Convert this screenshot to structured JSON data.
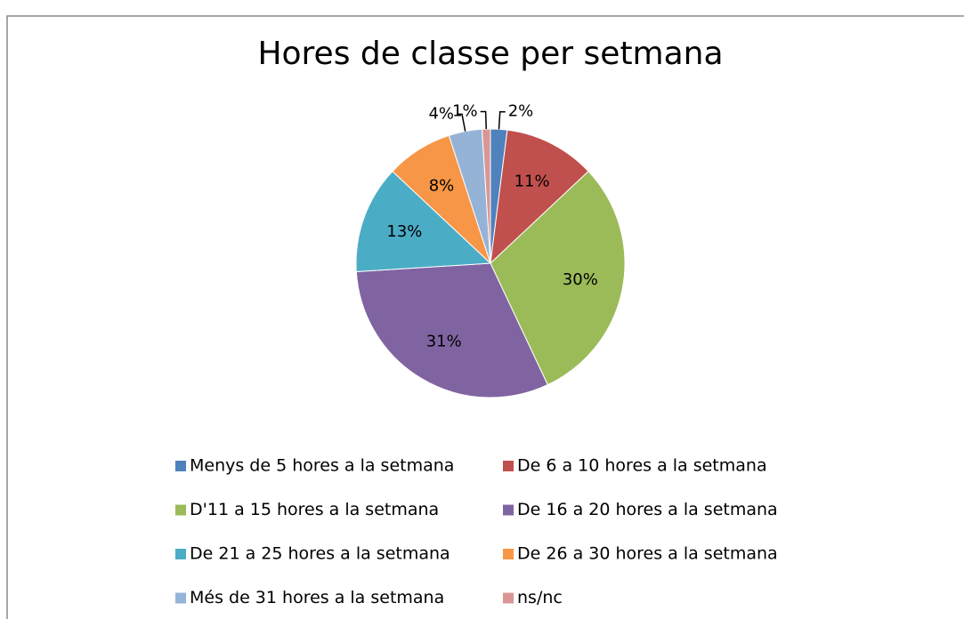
{
  "chart_data": {
    "type": "pie",
    "title": "Hores de classe per setmana",
    "categories": [
      "Menys de 5 hores a la setmana",
      "De 6 a 10 hores a la setmana",
      "D'11 a 15 hores a la setmana",
      "De 16 a 20 hores a la setmana",
      "De 21 a 25 hores a la setmana",
      "De 26 a 30 hores a la setmana",
      "Més de 31 hores a la setmana",
      "ns/nc"
    ],
    "values": [
      2,
      11,
      30,
      31,
      13,
      8,
      4,
      1
    ],
    "value_labels": [
      "2%",
      "11%",
      "30%",
      "31%",
      "13%",
      "8%",
      "4%",
      "1%"
    ],
    "colors": [
      "#4f81bd",
      "#c0504d",
      "#9bbb59",
      "#8064a2",
      "#4bacc6",
      "#f79646",
      "#95b3d7",
      "#d99694"
    ],
    "legend": "bottom"
  }
}
